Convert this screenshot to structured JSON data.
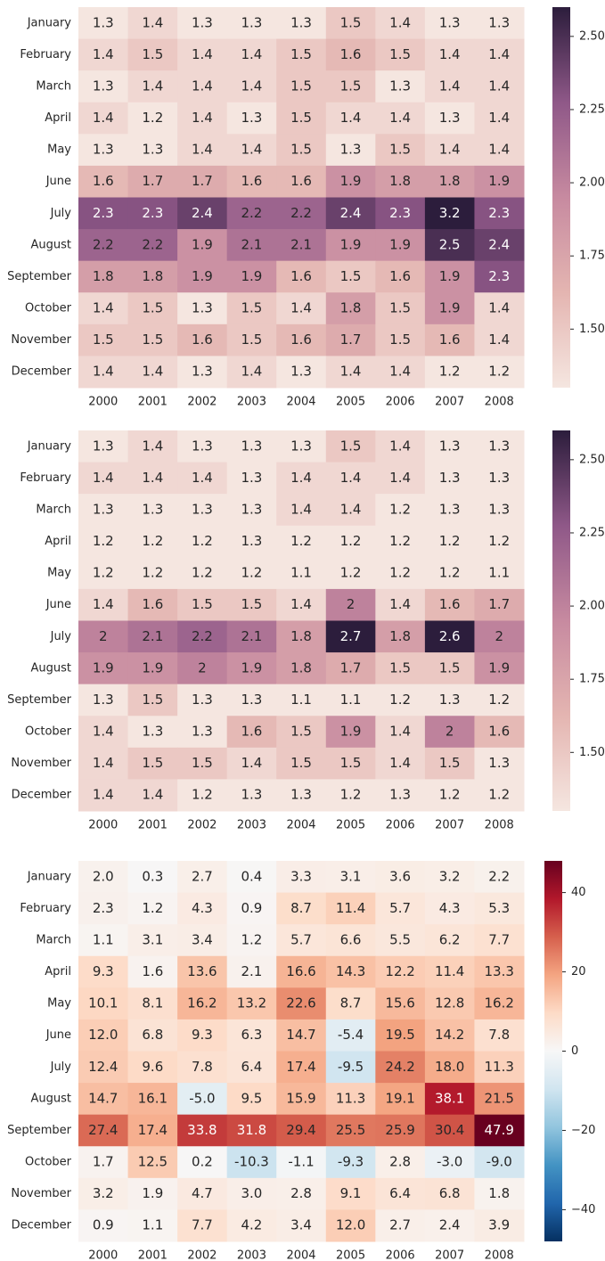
{
  "chart_data": [
    {
      "type": "heatmap",
      "categories": [
        "2000",
        "2001",
        "2002",
        "2003",
        "2004",
        "2005",
        "2006",
        "2007",
        "2008"
      ],
      "rows": [
        "January",
        "February",
        "March",
        "April",
        "May",
        "June",
        "July",
        "August",
        "September",
        "October",
        "November",
        "December"
      ],
      "values": [
        [
          1.3,
          1.4,
          1.3,
          1.3,
          1.3,
          1.5,
          1.4,
          1.3,
          1.3
        ],
        [
          1.4,
          1.5,
          1.4,
          1.4,
          1.5,
          1.6,
          1.5,
          1.4,
          1.4
        ],
        [
          1.3,
          1.4,
          1.4,
          1.4,
          1.5,
          1.5,
          1.3,
          1.4,
          1.4
        ],
        [
          1.4,
          1.2,
          1.4,
          1.3,
          1.5,
          1.4,
          1.4,
          1.3,
          1.4
        ],
        [
          1.3,
          1.3,
          1.4,
          1.4,
          1.5,
          1.3,
          1.5,
          1.4,
          1.4
        ],
        [
          1.6,
          1.7,
          1.7,
          1.6,
          1.6,
          1.9,
          1.8,
          1.8,
          1.9
        ],
        [
          2.3,
          2.3,
          2.4,
          2.2,
          2.2,
          2.4,
          2.3,
          3.2,
          2.3
        ],
        [
          2.2,
          2.2,
          1.9,
          2.1,
          2.1,
          1.9,
          1.9,
          2.5,
          2.4
        ],
        [
          1.8,
          1.8,
          1.9,
          1.9,
          1.6,
          1.5,
          1.6,
          1.9,
          2.3
        ],
        [
          1.4,
          1.5,
          1.3,
          1.5,
          1.4,
          1.8,
          1.5,
          1.9,
          1.4
        ],
        [
          1.5,
          1.5,
          1.6,
          1.5,
          1.6,
          1.7,
          1.5,
          1.6,
          1.4
        ],
        [
          1.4,
          1.4,
          1.3,
          1.4,
          1.3,
          1.4,
          1.4,
          1.2,
          1.2
        ]
      ],
      "clim": [
        1.3,
        2.6
      ],
      "cticks": [
        {
          "value": 1.5,
          "label": "1.50"
        },
        {
          "value": 1.75,
          "label": "1.75"
        },
        {
          "value": 2.0,
          "label": "2.00"
        },
        {
          "value": 2.25,
          "label": "2.25"
        },
        {
          "value": 2.5,
          "label": "2.50"
        }
      ],
      "colors": [
        "#f5e6e0",
        "#e4b5b1",
        "#c78aa0",
        "#8f5888",
        "#2c1d3c"
      ]
    },
    {
      "type": "heatmap",
      "categories": [
        "2000",
        "2001",
        "2002",
        "2003",
        "2004",
        "2005",
        "2006",
        "2007",
        "2008"
      ],
      "rows": [
        "January",
        "February",
        "March",
        "April",
        "May",
        "June",
        "July",
        "August",
        "September",
        "October",
        "November",
        "December"
      ],
      "values": [
        [
          1.3,
          1.4,
          1.3,
          1.3,
          1.3,
          1.5,
          1.4,
          1.3,
          1.3
        ],
        [
          1.4,
          1.4,
          1.4,
          1.3,
          1.4,
          1.4,
          1.4,
          1.3,
          1.3
        ],
        [
          1.3,
          1.3,
          1.3,
          1.3,
          1.4,
          1.4,
          1.2,
          1.3,
          1.3
        ],
        [
          1.2,
          1.2,
          1.2,
          1.3,
          1.2,
          1.2,
          1.2,
          1.2,
          1.2
        ],
        [
          1.2,
          1.2,
          1.2,
          1.2,
          1.1,
          1.2,
          1.2,
          1.2,
          1.1
        ],
        [
          1.4,
          1.6,
          1.5,
          1.5,
          1.4,
          2,
          1.4,
          1.6,
          1.7
        ],
        [
          2,
          2.1,
          2.2,
          2.1,
          1.8,
          2.7,
          1.8,
          2.6,
          2
        ],
        [
          1.9,
          1.9,
          2,
          1.9,
          1.8,
          1.7,
          1.5,
          1.5,
          1.9
        ],
        [
          1.3,
          1.5,
          1.3,
          1.3,
          1.1,
          1.1,
          1.2,
          1.3,
          1.2
        ],
        [
          1.4,
          1.3,
          1.3,
          1.6,
          1.5,
          1.9,
          1.4,
          2,
          1.6
        ],
        [
          1.4,
          1.5,
          1.5,
          1.4,
          1.5,
          1.5,
          1.4,
          1.5,
          1.3
        ],
        [
          1.4,
          1.4,
          1.2,
          1.3,
          1.3,
          1.2,
          1.3,
          1.2,
          1.2
        ]
      ],
      "clim": [
        1.3,
        2.6
      ],
      "cticks": [
        {
          "value": 1.5,
          "label": "1.50"
        },
        {
          "value": 1.75,
          "label": "1.75"
        },
        {
          "value": 2.0,
          "label": "2.00"
        },
        {
          "value": 2.25,
          "label": "2.25"
        },
        {
          "value": 2.5,
          "label": "2.50"
        }
      ],
      "colors": [
        "#f5e6e0",
        "#e4b5b1",
        "#c78aa0",
        "#8f5888",
        "#2c1d3c"
      ]
    },
    {
      "type": "heatmap",
      "categories": [
        "2000",
        "2001",
        "2002",
        "2003",
        "2004",
        "2005",
        "2006",
        "2007",
        "2008"
      ],
      "rows": [
        "January",
        "February",
        "March",
        "April",
        "May",
        "June",
        "July",
        "August",
        "September",
        "October",
        "November",
        "December"
      ],
      "values": [
        [
          2.0,
          0.3,
          2.7,
          0.4,
          3.3,
          3.1,
          3.6,
          3.2,
          2.2
        ],
        [
          2.3,
          1.2,
          4.3,
          0.9,
          8.7,
          11.4,
          5.7,
          4.3,
          5.3
        ],
        [
          1.1,
          3.1,
          3.4,
          1.2,
          5.7,
          6.6,
          5.5,
          6.2,
          7.7
        ],
        [
          9.3,
          1.6,
          13.6,
          2.1,
          16.6,
          14.3,
          12.2,
          11.4,
          13.3
        ],
        [
          10.1,
          8.1,
          16.2,
          13.2,
          22.6,
          8.7,
          15.6,
          12.8,
          16.2
        ],
        [
          12.0,
          6.8,
          9.3,
          6.3,
          14.7,
          -5.4,
          19.5,
          14.2,
          7.8
        ],
        [
          12.4,
          9.6,
          7.8,
          6.4,
          17.4,
          -9.5,
          24.2,
          18.0,
          11.3
        ],
        [
          14.7,
          16.1,
          -5.0,
          9.5,
          15.9,
          11.3,
          19.1,
          38.1,
          21.5
        ],
        [
          27.4,
          17.4,
          33.8,
          31.8,
          29.4,
          25.5,
          25.9,
          30.4,
          47.9
        ],
        [
          1.7,
          12.5,
          0.2,
          -10.3,
          -1.1,
          -9.3,
          2.8,
          -3.0,
          -9.0
        ],
        [
          3.2,
          1.9,
          4.7,
          3.0,
          2.8,
          9.1,
          6.4,
          6.8,
          1.8
        ],
        [
          0.9,
          1.1,
          7.7,
          4.2,
          3.4,
          12.0,
          2.7,
          2.4,
          3.9
        ]
      ],
      "value_labels": [
        [
          "2.0",
          "0.3",
          "2.7",
          "0.4",
          "3.3",
          "3.1",
          "3.6",
          "3.2",
          "2.2"
        ],
        [
          "2.3",
          "1.2",
          "4.3",
          "0.9",
          "8.7",
          "11.4",
          "5.7",
          "4.3",
          "5.3"
        ],
        [
          "1.1",
          "3.1",
          "3.4",
          "1.2",
          "5.7",
          "6.6",
          "5.5",
          "6.2",
          "7.7"
        ],
        [
          "9.3",
          "1.6",
          "13.6",
          "2.1",
          "16.6",
          "14.3",
          "12.2",
          "11.4",
          "13.3"
        ],
        [
          "10.1",
          "8.1",
          "16.2",
          "13.2",
          "22.6",
          "8.7",
          "15.6",
          "12.8",
          "16.2"
        ],
        [
          "12.0",
          "6.8",
          "9.3",
          "6.3",
          "14.7",
          "-5.4",
          "19.5",
          "14.2",
          "7.8"
        ],
        [
          "12.4",
          "9.6",
          "7.8",
          "6.4",
          "17.4",
          "-9.5",
          "24.2",
          "18.0",
          "11.3"
        ],
        [
          "14.7",
          "16.1",
          "-5.0",
          "9.5",
          "15.9",
          "11.3",
          "19.1",
          "38.1",
          "21.5"
        ],
        [
          "27.4",
          "17.4",
          "33.8",
          "31.8",
          "29.4",
          "25.5",
          "25.9",
          "30.4",
          "47.9"
        ],
        [
          "1.7",
          "12.5",
          "0.2",
          "-10.3",
          "-1.1",
          "-9.3",
          "2.8",
          "-3.0",
          "-9.0"
        ],
        [
          "3.2",
          "1.9",
          "4.7",
          "3.0",
          "2.8",
          "9.1",
          "6.4",
          "6.8",
          "1.8"
        ],
        [
          "0.9",
          "1.1",
          "7.7",
          "4.2",
          "3.4",
          "12.0",
          "2.7",
          "2.4",
          "3.9"
        ]
      ],
      "clim": [
        -48,
        48
      ],
      "cticks": [
        {
          "value": -40,
          "label": "−40"
        },
        {
          "value": -20,
          "label": "−20"
        },
        0,
        20,
        40
      ],
      "colors": [
        "#053061",
        "#2166ac",
        "#4393c3",
        "#92c5de",
        "#d1e5f0",
        "#f7f7f7",
        "#fddbc7",
        "#f4a582",
        "#d6604d",
        "#b2182b",
        "#67001f"
      ]
    }
  ]
}
